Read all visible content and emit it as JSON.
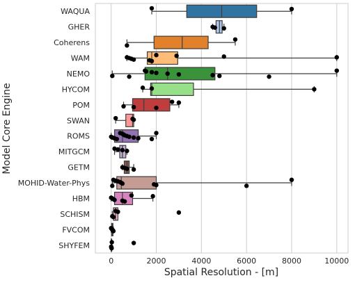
{
  "chart_data": {
    "type": "box",
    "orientation": "horizontal",
    "title": "",
    "xlabel": "Spatial Resolution - [m]",
    "ylabel": "Model Core Engine",
    "xlim": [
      -700,
      10500
    ],
    "xticks": [
      0,
      2000,
      4000,
      6000,
      8000,
      10000
    ],
    "grid": "vertical",
    "categories": [
      "WAQUA",
      "GHER",
      "Coherens",
      "WAM",
      "NEMO",
      "HYCOM",
      "POM",
      "SWAN",
      "ROMS",
      "MITGCM",
      "GETM",
      "MOHID-Water-Phys",
      "HBM",
      "SCHISM",
      "FVCOM",
      "SHYFEM"
    ],
    "boxes": [
      {
        "name": "WAQUA",
        "color": "#3274a1",
        "whislo": 1800,
        "q1": 3350,
        "med": 4900,
        "q3": 6450,
        "whishi": 8000,
        "points": [
          1800,
          8000
        ]
      },
      {
        "name": "GHER",
        "color": "#aec7e8",
        "whislo": 4500,
        "q1": 4650,
        "med": 4800,
        "q3": 4920,
        "whishi": 5000,
        "points": [
          4500,
          4600,
          5000
        ]
      },
      {
        "name": "Coherens",
        "color": "#e1812c",
        "whislo": 700,
        "q1": 1900,
        "med": 3150,
        "q3": 4300,
        "whishi": 5500,
        "points": [
          700,
          5500
        ]
      },
      {
        "name": "WAM",
        "color": "#ffbb78",
        "whislo": 700,
        "q1": 1600,
        "med": 1800,
        "q3": 2950,
        "whishi": 10000,
        "points": [
          700,
          800,
          900,
          1000,
          1700,
          1800,
          2000,
          2900,
          5000,
          10000
        ]
      },
      {
        "name": "NEMO",
        "color": "#3a923a",
        "whislo": 50,
        "q1": 1500,
        "med": 2500,
        "q3": 4600,
        "whishi": 10000,
        "points": [
          50,
          800,
          1500,
          1550,
          1800,
          2000,
          2500,
          3000,
          4500,
          4800,
          7000,
          10000
        ]
      },
      {
        "name": "HYCOM",
        "color": "#98df8a",
        "whislo": 1400,
        "q1": 1750,
        "med": 1800,
        "q3": 3650,
        "whishi": 9000,
        "points": [
          1400,
          1800,
          9000
        ]
      },
      {
        "name": "POM",
        "color": "#c03d3e",
        "whislo": 550,
        "q1": 950,
        "med": 1450,
        "q3": 2600,
        "whishi": 3000,
        "points": [
          550,
          1000,
          2000,
          2700,
          3000
        ]
      },
      {
        "name": "SWAN",
        "color": "#ff9896",
        "whislo": 200,
        "q1": 650,
        "med": 950,
        "q3": 1000,
        "whishi": 1000,
        "points": [
          200,
          950,
          1000
        ]
      },
      {
        "name": "ROMS",
        "color": "#9372b2",
        "whislo": 0,
        "q1": 150,
        "med": 500,
        "q3": 1200,
        "whishi": 2000,
        "points": [
          0,
          50,
          150,
          250,
          400,
          500,
          550,
          600,
          700,
          800,
          1000,
          1200,
          1800,
          2000
        ]
      },
      {
        "name": "MITGCM",
        "color": "#c5b0d5",
        "whislo": 150,
        "q1": 380,
        "med": 500,
        "q3": 650,
        "whishi": 700,
        "points": [
          150,
          300,
          500,
          700
        ]
      },
      {
        "name": "GETM",
        "color": "#845b53",
        "whislo": 500,
        "q1": 580,
        "med": 700,
        "q3": 800,
        "whishi": 1000,
        "points": [
          500,
          600,
          700,
          1000
        ]
      },
      {
        "name": "MOHID-Water-Phys",
        "color": "#c49c94",
        "whislo": 50,
        "q1": 250,
        "med": 450,
        "q3": 2000,
        "whishi": 8000,
        "points": [
          50,
          100,
          200,
          300,
          400,
          450,
          500,
          1900,
          2000,
          6000,
          8000
        ]
      },
      {
        "name": "HBM",
        "color": "#d684bd",
        "whislo": 0,
        "q1": 150,
        "med": 500,
        "q3": 950,
        "whishi": 1850,
        "points": [
          0,
          50,
          100,
          150,
          500,
          600,
          900,
          1850
        ]
      },
      {
        "name": "SCHISM",
        "color": "#f7b6d2",
        "whislo": 50,
        "q1": 100,
        "med": 200,
        "q3": 300,
        "whishi": 300,
        "points": [
          50,
          100,
          200,
          300,
          3000
        ]
      },
      {
        "name": "FVCOM",
        "color": "#7f7f7f",
        "whislo": 0,
        "q1": 20,
        "med": 50,
        "q3": 80,
        "whishi": 100,
        "points": [
          0,
          20,
          50,
          80,
          100
        ]
      },
      {
        "name": "SHYFEM",
        "color": "#c7c7c7",
        "whislo": 0,
        "q1": 0,
        "med": 10,
        "q3": 20,
        "whishi": 30,
        "points": [
          0,
          10,
          20,
          30,
          1000
        ]
      }
    ]
  }
}
